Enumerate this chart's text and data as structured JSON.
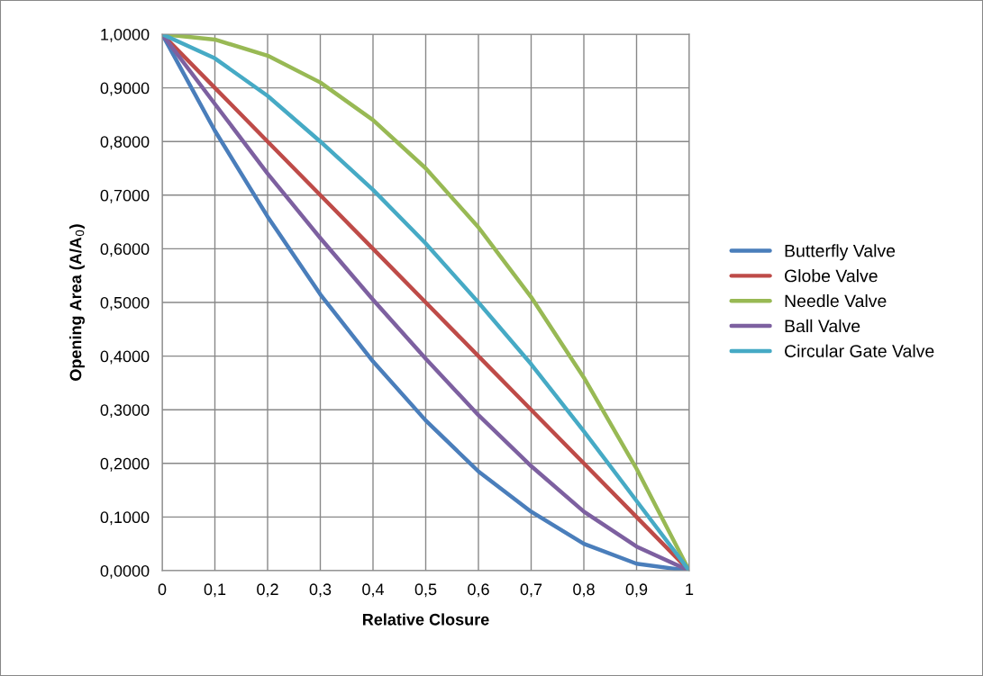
{
  "chart_data": {
    "type": "line",
    "xlabel": "Relative Closure",
    "ylabel": "Opening Area (A/A$_{0}$)",
    "x": [
      0,
      0.1,
      0.2,
      0.3,
      0.4,
      0.5,
      0.6,
      0.7,
      0.8,
      0.9,
      1
    ],
    "series": [
      {
        "name": "Butterfly Valve",
        "color": "#4a7ebb",
        "values": [
          1,
          0.82,
          0.66,
          0.515,
          0.39,
          0.28,
          0.185,
          0.11,
          0.05,
          0.013,
          0
        ]
      },
      {
        "name": "Globe Valve",
        "color": "#be4b48",
        "values": [
          1,
          0.9,
          0.8,
          0.7,
          0.6,
          0.5,
          0.4,
          0.3,
          0.2,
          0.1,
          0
        ]
      },
      {
        "name": "Needle Valve",
        "color": "#98b954",
        "values": [
          1,
          0.99,
          0.96,
          0.91,
          0.84,
          0.75,
          0.64,
          0.51,
          0.36,
          0.19,
          0
        ]
      },
      {
        "name": "Ball Valve",
        "color": "#7d60a0",
        "values": [
          1,
          0.87,
          0.74,
          0.62,
          0.505,
          0.395,
          0.29,
          0.195,
          0.11,
          0.045,
          0
        ]
      },
      {
        "name": "Circular Gate Valve",
        "color": "#46aac5",
        "values": [
          1,
          0.955,
          0.885,
          0.8,
          0.71,
          0.61,
          0.5,
          0.385,
          0.26,
          0.13,
          0
        ]
      }
    ],
    "xlim": [
      0,
      1
    ],
    "xticks": [
      0,
      {
        "value": 0.1,
        "label": "0,1"
      },
      {
        "value": 0.2,
        "label": "0,2"
      },
      {
        "value": 0.3,
        "label": "0,3"
      },
      {
        "value": 0.4,
        "label": "0,4"
      },
      {
        "value": 0.5,
        "label": "0,5"
      },
      {
        "value": 0.6,
        "label": "0,6"
      },
      {
        "value": 0.7,
        "label": "0,7"
      },
      {
        "value": 0.8,
        "label": "0,8"
      },
      {
        "value": 0.9,
        "label": "0,9"
      },
      1
    ],
    "ylim": [
      0,
      1
    ],
    "yticks": [
      {
        "value": 0,
        "label": "0,0000"
      },
      {
        "value": 0.1,
        "label": "0,1000"
      },
      {
        "value": 0.2,
        "label": "0,2000"
      },
      {
        "value": 0.3,
        "label": "0,3000"
      },
      {
        "value": 0.4,
        "label": "0,4000"
      },
      {
        "value": 0.5,
        "label": "0,5000"
      },
      {
        "value": 0.6,
        "label": "0,6000"
      },
      {
        "value": 0.7,
        "label": "0,7000"
      },
      {
        "value": 0.8,
        "label": "0,8000"
      },
      {
        "value": 0.9,
        "label": "0,9000"
      },
      {
        "value": 1,
        "label": "1,0000"
      }
    ],
    "grid": true,
    "legend": "right",
    "marker": "none",
    "line_style": "solid"
  }
}
